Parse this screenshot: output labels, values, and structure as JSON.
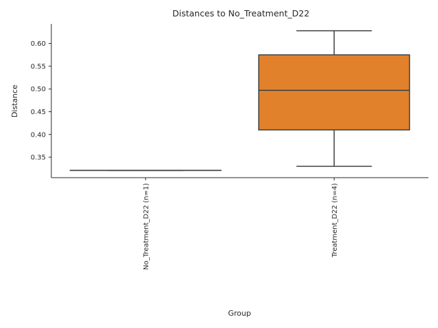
{
  "chart_data": {
    "type": "box",
    "title": "Distances to No_Treatment_D22",
    "xlabel": "Group",
    "ylabel": "Distance",
    "ylim": [
      0.305,
      0.643
    ],
    "yticks": [
      "0.35",
      "0.40",
      "0.45",
      "0.50",
      "0.55",
      "0.60"
    ],
    "grid": false,
    "categories": [
      "No_Treatment_D22 (n=1)",
      "Treatment_D22 (n=4)"
    ],
    "boxes": [
      {
        "category": "No_Treatment_D22 (n=1)",
        "whisker_low": 0.321,
        "q1": 0.321,
        "median": 0.321,
        "q3": 0.321,
        "whisker_high": 0.321,
        "color": "#3274a1"
      },
      {
        "category": "Treatment_D22 (n=4)",
        "whisker_low": 0.33,
        "q1": 0.41,
        "median": 0.497,
        "q3": 0.575,
        "whisker_high": 0.628,
        "color": "#e1812c"
      }
    ],
    "line_color": "#3f3f3f"
  }
}
